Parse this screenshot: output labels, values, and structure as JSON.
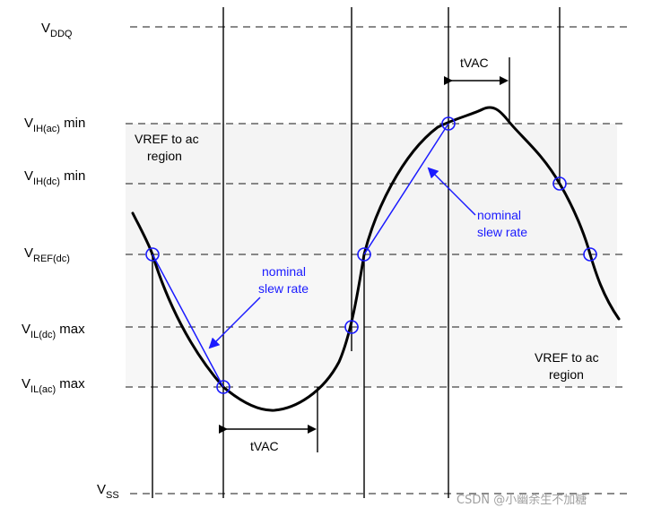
{
  "levels": {
    "vddq": {
      "main": "V",
      "sub": "DDQ",
      "suffix": ""
    },
    "vih_ac": {
      "main": "V",
      "sub": "IH(ac)",
      "suffix": " min"
    },
    "vih_dc": {
      "main": "V",
      "sub": "IH(dc)",
      "suffix": " min"
    },
    "vref_dc": {
      "main": "V",
      "sub": "REF(dc)",
      "suffix": ""
    },
    "vil_dc": {
      "main": "V",
      "sub": "IL(dc)",
      "suffix": " max"
    },
    "vil_ac": {
      "main": "V",
      "sub": "IL(ac)",
      "suffix": " max"
    },
    "vss": {
      "main": "V",
      "sub": "SS",
      "suffix": ""
    }
  },
  "labels": {
    "region_top_1": "VREF to ac",
    "region_top_2": "region",
    "region_bottom_1": "VREF to ac",
    "region_bottom_2": "region",
    "slew_left_1": "nominal",
    "slew_left_2": "slew rate",
    "slew_right_1": "nominal",
    "slew_right_2": "slew rate",
    "tvac_top": "tVAC",
    "tvac_bottom": "tVAC"
  },
  "watermark": "CSDN @小幽余生不加糖",
  "colors": {
    "curve": "#000000",
    "slew_line": "#1a1aff",
    "marker": "#1a1aff",
    "region_fill": "#f4f4f4",
    "dash": "#444444",
    "watermark": "#a0a0a0"
  }
}
